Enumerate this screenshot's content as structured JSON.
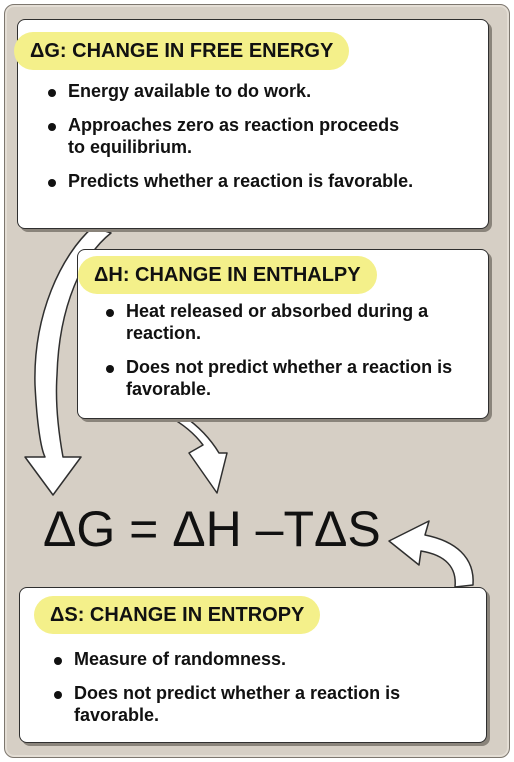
{
  "free_energy": {
    "title": "ΔG: CHANGE IN FREE ENERGY",
    "bullets": [
      "Energy available to do work.",
      "Approaches zero as reaction proceeds to equilibrium.",
      "Predicts whether a reaction is favorable."
    ]
  },
  "enthalpy": {
    "title": "ΔH: CHANGE IN ENTHALPY",
    "bullets": [
      "Heat released or absorbed during a reaction.",
      "Does not predict whether a reaction is favorable."
    ]
  },
  "entropy": {
    "title": "ΔS: CHANGE IN ENTROPY",
    "bullets": [
      "Measure of randomness.",
      "Does not predict whether a reaction is favorable."
    ]
  },
  "equation": "ΔG = ΔH –TΔS",
  "colors": {
    "panel_background": "#d6cfc5",
    "title_highlight": "#f4f08a",
    "box_background": "#ffffff",
    "text": "#111111"
  }
}
